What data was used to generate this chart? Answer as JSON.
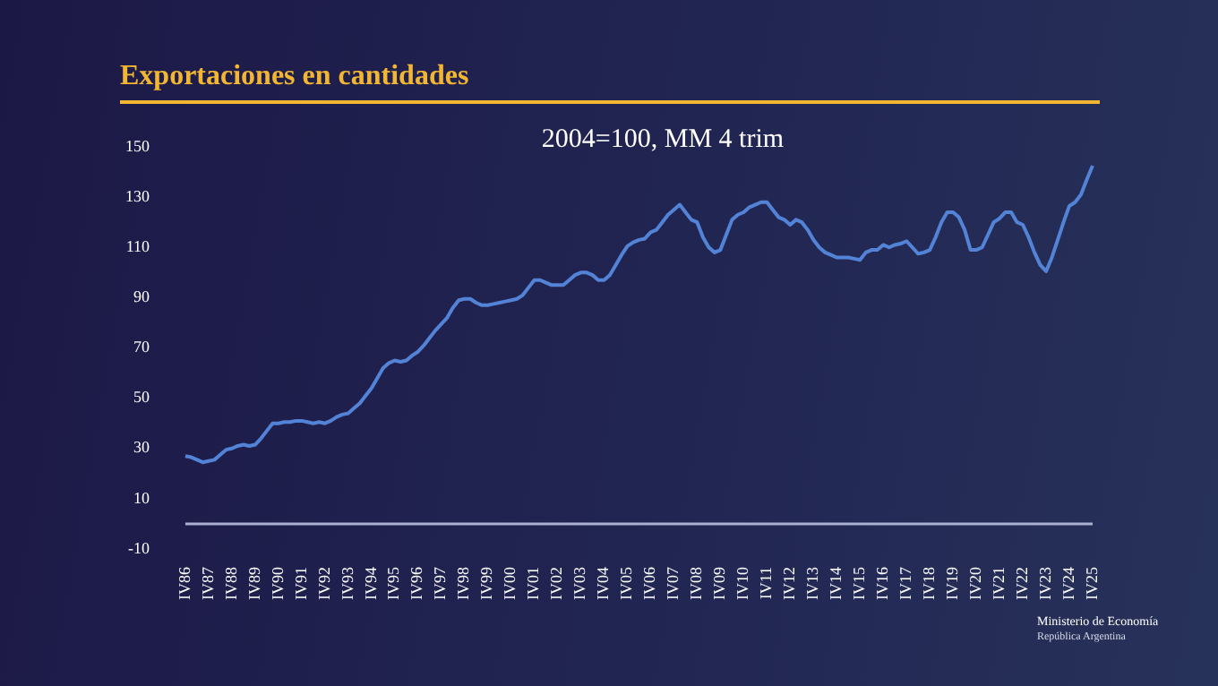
{
  "chart_data": {
    "type": "line",
    "title": "Exportaciones en cantidades",
    "subtitle": "2004=100, MM 4 trim",
    "categories": [
      "IV86",
      null,
      null,
      null,
      "IV87",
      null,
      null,
      null,
      "IV88",
      null,
      null,
      null,
      "IV89",
      null,
      null,
      null,
      "IV90",
      null,
      null,
      null,
      "IV91",
      null,
      null,
      null,
      "IV92",
      null,
      null,
      null,
      "IV93",
      null,
      null,
      null,
      "IV94",
      null,
      null,
      null,
      "IV95",
      null,
      null,
      null,
      "IV96",
      null,
      null,
      null,
      "IV97",
      null,
      null,
      null,
      "IV98",
      null,
      null,
      null,
      "IV99",
      null,
      null,
      null,
      "IV00",
      null,
      null,
      null,
      "IV01",
      null,
      null,
      null,
      "IV02",
      null,
      null,
      null,
      "IV03",
      null,
      null,
      null,
      "IV04",
      null,
      null,
      null,
      "IV05",
      null,
      null,
      null,
      "IV06",
      null,
      null,
      null,
      "IV07",
      null,
      null,
      null,
      "IV08",
      null,
      null,
      null,
      "IV09",
      null,
      null,
      null,
      "IV10",
      null,
      null,
      null,
      "IV11",
      null,
      null,
      null,
      "IV12",
      null,
      null,
      null,
      "IV13",
      null,
      null,
      null,
      "IV14",
      null,
      null,
      null,
      "IV15",
      null,
      null,
      null,
      "IV16",
      null,
      null,
      null,
      "IV17",
      null,
      null,
      null,
      "IV18",
      null,
      null,
      null,
      "IV19",
      null,
      null,
      null,
      "IV20",
      null,
      null,
      null,
      "IV21",
      null,
      null,
      null,
      "IV22",
      null,
      null,
      null,
      "IV23",
      null,
      null,
      null,
      "IV24",
      null,
      null,
      null,
      "IV25"
    ],
    "series": [
      {
        "color": "#5383d6",
        "values": [
          27,
          26.5,
          25.5,
          24.5,
          25,
          25.5,
          27.5,
          29.5,
          30,
          31,
          31.5,
          31,
          31.5,
          34,
          37,
          40,
          40,
          40.5,
          40.5,
          41,
          41,
          40.5,
          40,
          40.5,
          40,
          41,
          42.5,
          43.5,
          44,
          46,
          48,
          51,
          54,
          58,
          62,
          64,
          65,
          64.5,
          65,
          67,
          68.5,
          71,
          74,
          77,
          79.5,
          82,
          86,
          89,
          89.5,
          89.5,
          88,
          87,
          87,
          87.5,
          88,
          88.5,
          89,
          89.5,
          91,
          94,
          97,
          97,
          96,
          95,
          95,
          95,
          97,
          99,
          100,
          100,
          99,
          97,
          97,
          99,
          103,
          107,
          110.5,
          112,
          113,
          113.5,
          116,
          117,
          120,
          123,
          125,
          127,
          124,
          121,
          120,
          114,
          110,
          108,
          109,
          115,
          121,
          123,
          124,
          126,
          127,
          128,
          128,
          125,
          122,
          121,
          119,
          121,
          120,
          117,
          113,
          110,
          108,
          107,
          106,
          106,
          106,
          105.5,
          105,
          108,
          109,
          109,
          111,
          110,
          111,
          111.5,
          112.5,
          110,
          107.5,
          108,
          109,
          114,
          120,
          124,
          124,
          122,
          117,
          109,
          109,
          110,
          115,
          120,
          121.5,
          124,
          124,
          120,
          119,
          114,
          108,
          103,
          100.5,
          106,
          113,
          120,
          126.5,
          128,
          131,
          137,
          142.5
        ]
      }
    ],
    "ylim": [
      -10,
      150
    ],
    "yticks": [
      -10,
      10,
      30,
      50,
      70,
      90,
      110,
      130,
      150
    ],
    "ref_lines": [
      {
        "axis": "y",
        "value": 0,
        "color": "#a9b0d0"
      }
    ],
    "annotations": [
      "Ministerio de Economía",
      "República Argentina"
    ]
  }
}
